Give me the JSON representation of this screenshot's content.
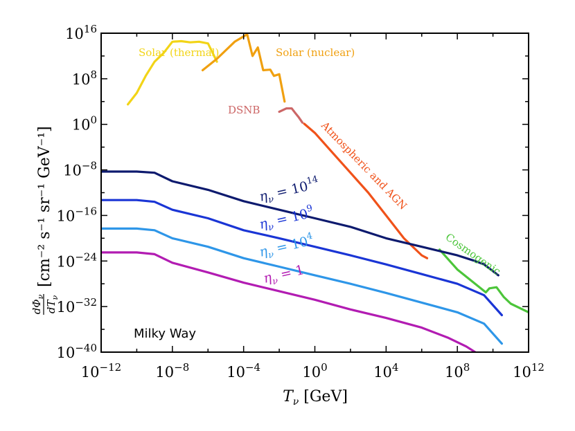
{
  "chart_data": {
    "type": "line",
    "xscale": "log",
    "yscale": "log",
    "xlim": [
      1e-12,
      1000000000000.0
    ],
    "ylim": [
      1e-40,
      1e+16
    ],
    "grid": false,
    "xlabel": {
      "main": "T",
      "sub": "ν",
      "unit": " [GeV]"
    },
    "ylabel": {
      "num": "dΦ",
      "num_sub": "ν",
      "den": "dT",
      "den_sub": "ν",
      "unit": "[cm⁻² s⁻¹ sr⁻¹ GeV⁻¹]"
    },
    "xticks": [
      {
        "value": 1e-12,
        "base": "10",
        "exp": "−12"
      },
      {
        "value": 1e-08,
        "base": "10",
        "exp": "−8"
      },
      {
        "value": 0.0001,
        "base": "10",
        "exp": "−4"
      },
      {
        "value": 1,
        "base": "10",
        "exp": "0"
      },
      {
        "value": 10000.0,
        "base": "10",
        "exp": "4"
      },
      {
        "value": 100000000.0,
        "base": "10",
        "exp": "8"
      },
      {
        "value": 1000000000000.0,
        "base": "10",
        "exp": "12"
      }
    ],
    "yticks": [
      {
        "value": 1e-40,
        "base": "10",
        "exp": "−40"
      },
      {
        "value": 1e-32,
        "base": "10",
        "exp": "−32"
      },
      {
        "value": 1e-24,
        "base": "10",
        "exp": "−24"
      },
      {
        "value": 1e-16,
        "base": "10",
        "exp": "−16"
      },
      {
        "value": 1e-08,
        "base": "10",
        "exp": "−8"
      },
      {
        "value": 1,
        "base": "10",
        "exp": "0"
      },
      {
        "value": 100000000.0,
        "base": "10",
        "exp": "8"
      },
      {
        "value": 1e+16,
        "base": "10",
        "exp": "16"
      }
    ],
    "annotation": "Milky Way",
    "series": [
      {
        "label": "Solar (thermal)",
        "color": "#f2d417",
        "points": [
          [
            -10.5,
            3.5
          ],
          [
            -10,
            5.5
          ],
          [
            -9.5,
            8.5
          ],
          [
            -9,
            11
          ],
          [
            -8.5,
            12.5
          ],
          [
            -8,
            14.5
          ],
          [
            -7.5,
            14.6
          ],
          [
            -7,
            14.4
          ],
          [
            -6.5,
            14.5
          ],
          [
            -6,
            14.2
          ],
          [
            -5.5,
            11
          ]
        ]
      },
      {
        "label": "Solar (nuclear)",
        "color": "#f0a010",
        "points": [
          [
            -6.3,
            9.5
          ],
          [
            -5.5,
            11.5
          ],
          [
            -4.5,
            14.5
          ],
          [
            -3.8,
            15.8
          ],
          [
            -3.5,
            12
          ],
          [
            -3.2,
            13.5
          ],
          [
            -2.9,
            9.5
          ],
          [
            -2.5,
            9.6
          ],
          [
            -2.3,
            8.5
          ],
          [
            -2.0,
            8.8
          ],
          [
            -1.7,
            4
          ]
        ]
      },
      {
        "label": "DSNB",
        "color": "#cc6666",
        "points": [
          [
            -2.0,
            2.2
          ],
          [
            -1.6,
            2.8
          ],
          [
            -1.3,
            2.8
          ],
          [
            -1.1,
            2.0
          ],
          [
            -0.9,
            1.2
          ],
          [
            -0.7,
            0.3
          ]
        ]
      },
      {
        "label": "Atmospheric and AGN",
        "color": "#f0521a",
        "points": [
          [
            -0.6,
            0.1
          ],
          [
            0,
            -1.5
          ],
          [
            1,
            -5
          ],
          [
            2,
            -8.5
          ],
          [
            3,
            -12
          ],
          [
            4,
            -16
          ],
          [
            5,
            -20
          ],
          [
            6,
            -23
          ],
          [
            6.3,
            -23.5
          ]
        ]
      },
      {
        "label": "Cosmogenic",
        "color": "#4cc53a",
        "points": [
          [
            7,
            -22
          ],
          [
            8,
            -25.5
          ],
          [
            9,
            -28
          ],
          [
            9.6,
            -29.5
          ],
          [
            9.8,
            -28.8
          ],
          [
            10.2,
            -28.6
          ],
          [
            10.6,
            -30.3
          ],
          [
            11,
            -31.5
          ],
          [
            12,
            -33
          ]
        ]
      },
      {
        "label": "η",
        "label_sub": "ν",
        "label_eq": " = 10",
        "label_exp": "14",
        "color": "#0d1a6e",
        "points": [
          [
            -12,
            -8.3
          ],
          [
            -10,
            -8.3
          ],
          [
            -9,
            -8.5
          ],
          [
            -8,
            -10
          ],
          [
            -6,
            -11.5
          ],
          [
            -4,
            -13.5
          ],
          [
            -2,
            -15
          ],
          [
            0,
            -16.5
          ],
          [
            2,
            -18
          ],
          [
            4,
            -20
          ],
          [
            6,
            -21.5
          ],
          [
            8,
            -23
          ],
          [
            9,
            -24
          ],
          [
            9.5,
            -24.6
          ],
          [
            10.3,
            -26.5
          ]
        ]
      },
      {
        "label": "η",
        "label_sub": "ν",
        "label_eq": " = 10",
        "label_exp": "9",
        "color": "#1a35d5",
        "points": [
          [
            -12,
            -13.3
          ],
          [
            -10,
            -13.3
          ],
          [
            -9,
            -13.6
          ],
          [
            -8,
            -15
          ],
          [
            -6,
            -16.5
          ],
          [
            -4,
            -18.6
          ],
          [
            -2,
            -20
          ],
          [
            0,
            -21.5
          ],
          [
            2,
            -23
          ],
          [
            4,
            -24.6
          ],
          [
            6,
            -26.3
          ],
          [
            8,
            -28
          ],
          [
            9.5,
            -30
          ],
          [
            10.5,
            -33.5
          ]
        ]
      },
      {
        "label": "η",
        "label_sub": "ν",
        "label_eq": " = 10",
        "label_exp": "4",
        "color": "#2e96e8",
        "points": [
          [
            -12,
            -18.3
          ],
          [
            -10,
            -18.3
          ],
          [
            -9,
            -18.6
          ],
          [
            -8,
            -20
          ],
          [
            -6,
            -21.5
          ],
          [
            -4,
            -23.5
          ],
          [
            -2,
            -25
          ],
          [
            0,
            -26.5
          ],
          [
            2,
            -28
          ],
          [
            4,
            -29.6
          ],
          [
            6,
            -31.3
          ],
          [
            8,
            -33
          ],
          [
            9.5,
            -35
          ],
          [
            10.5,
            -38.5
          ]
        ]
      },
      {
        "label": "η",
        "label_sub": "ν",
        "label_eq": " = 1",
        "label_exp": "",
        "color": "#b21cb2",
        "points": [
          [
            -12,
            -22.5
          ],
          [
            -10,
            -22.5
          ],
          [
            -9,
            -22.8
          ],
          [
            -8,
            -24.3
          ],
          [
            -6,
            -26
          ],
          [
            -4,
            -27.8
          ],
          [
            -2,
            -29.3
          ],
          [
            0,
            -30.8
          ],
          [
            2,
            -32.5
          ],
          [
            4,
            -34
          ],
          [
            6,
            -35.7
          ],
          [
            7.5,
            -37.5
          ],
          [
            8.5,
            -39
          ],
          [
            9,
            -40
          ]
        ]
      }
    ]
  }
}
